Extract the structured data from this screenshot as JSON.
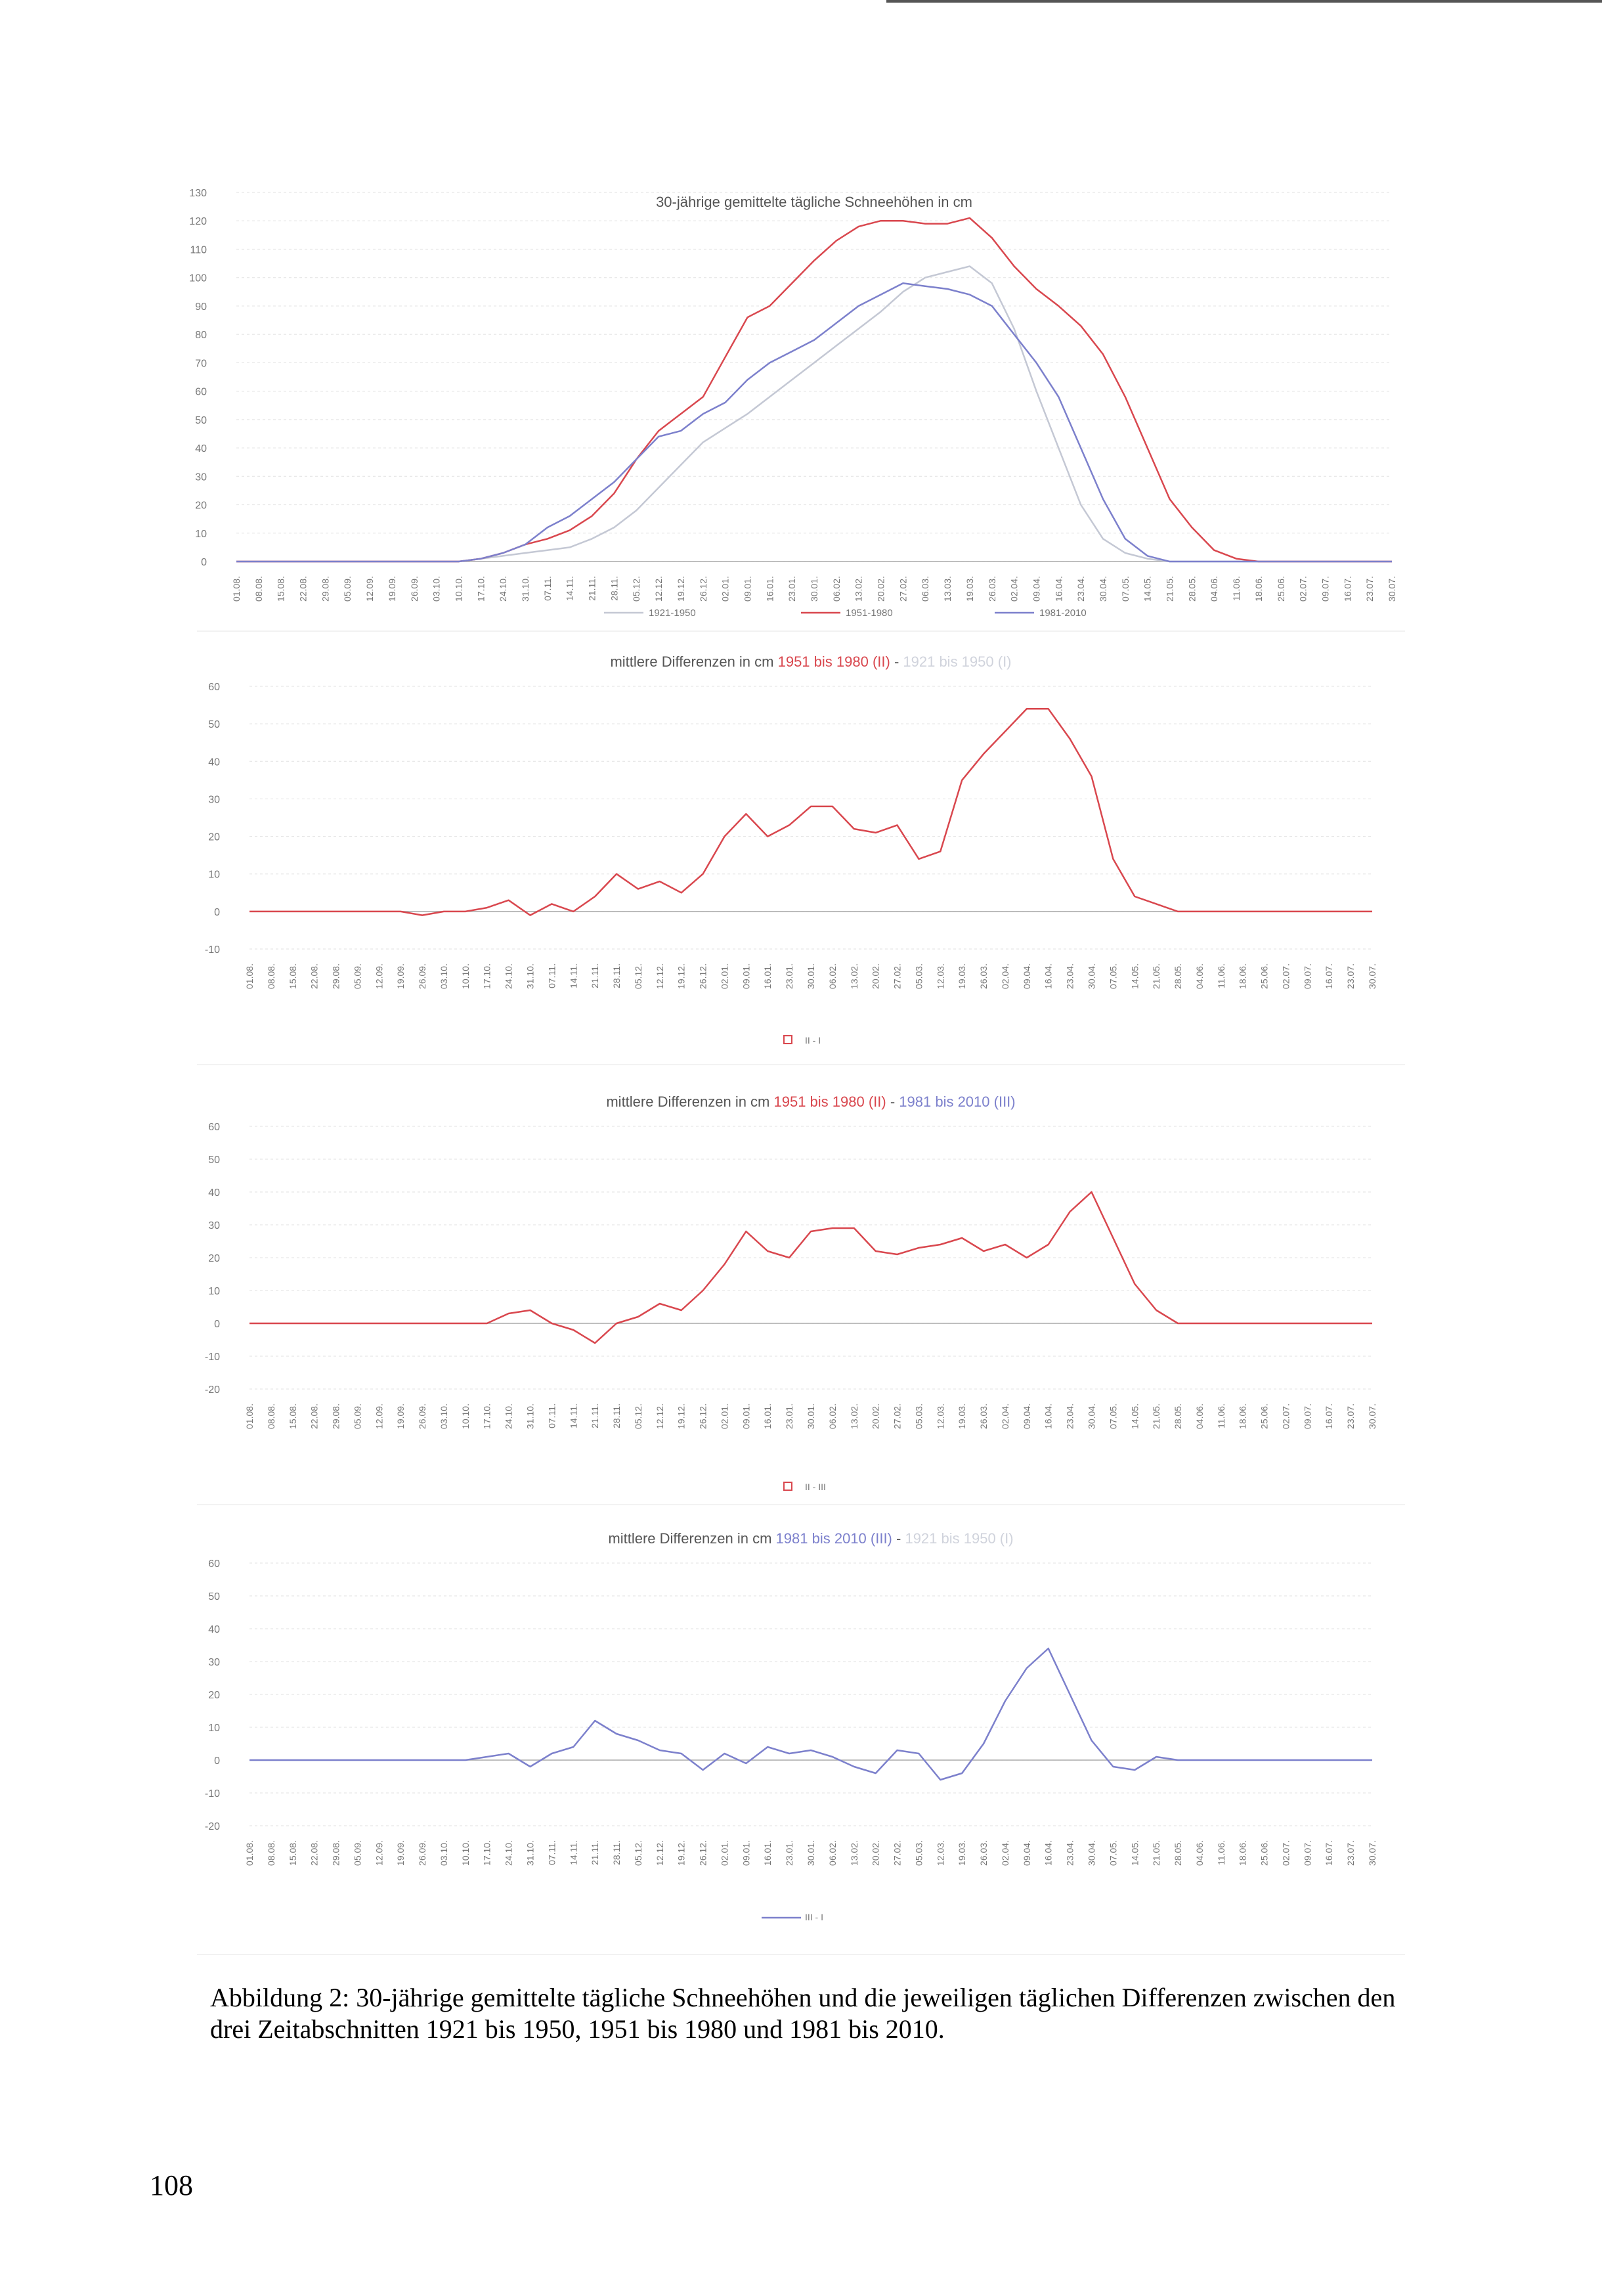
{
  "page_number": "108",
  "caption": "Abbildung 2: 30-jährige gemittelte tägliche Schneehöhen und die jeweiligen täglichen Differenzen zwischen den drei Zeitabschnitten 1921 bis 1950, 1951 bis 1980 und 1981 bis 2010.",
  "colors": {
    "c1921": "#c4c8d4",
    "c1951": "#d9474e",
    "c1981": "#7c80cc",
    "axis": "#999999",
    "grid": "#e6e6e6"
  },
  "chart_data": [
    {
      "type": "line",
      "title": "30-jährige gemittelte tägliche Schneehöhen in cm",
      "ylim": [
        0,
        130
      ],
      "yticks": [
        "0",
        "10",
        "20",
        "30",
        "40",
        "50",
        "60",
        "70",
        "80",
        "90",
        "100",
        "110",
        "120",
        "130"
      ],
      "categories": [
        "01.08.",
        "08.08.",
        "15.08.",
        "22.08.",
        "29.08.",
        "05.09.",
        "12.09.",
        "19.09.",
        "26.09.",
        "03.10.",
        "10.10.",
        "17.10.",
        "24.10.",
        "31.10.",
        "07.11.",
        "14.11.",
        "21.11.",
        "28.11.",
        "05.12.",
        "12.12.",
        "19.12.",
        "26.12.",
        "02.01.",
        "09.01.",
        "16.01.",
        "23.01.",
        "30.01.",
        "06.02.",
        "13.02.",
        "20.02.",
        "27.02.",
        "06.03.",
        "13.03.",
        "19.03.",
        "26.03.",
        "02.04.",
        "09.04.",
        "16.04.",
        "23.04.",
        "30.04.",
        "07.05.",
        "14.05.",
        "21.05.",
        "28.05.",
        "04.06.",
        "11.06.",
        "18.06.",
        "25.06.",
        "02.07.",
        "09.07.",
        "16.07.",
        "23.07.",
        "30.07."
      ],
      "legend": [
        "1921-1950",
        "1951-1980",
        "1981-2010"
      ],
      "series": [
        {
          "name": "1921-1950",
          "color": "#c4c8d4",
          "values": [
            0,
            0,
            0,
            0,
            0,
            0,
            0,
            0,
            0,
            0,
            0,
            1,
            2,
            3,
            4,
            5,
            8,
            12,
            18,
            26,
            34,
            42,
            47,
            52,
            58,
            64,
            70,
            76,
            82,
            88,
            95,
            100,
            102,
            104,
            98,
            82,
            60,
            40,
            20,
            8,
            3,
            1,
            0,
            0,
            0,
            0,
            0,
            0,
            0,
            0,
            0,
            0,
            0
          ]
        },
        {
          "name": "1951-1980",
          "color": "#d9474e",
          "values": [
            0,
            0,
            0,
            0,
            0,
            0,
            0,
            0,
            0,
            0,
            0,
            1,
            3,
            6,
            8,
            11,
            16,
            24,
            36,
            46,
            52,
            58,
            72,
            86,
            90,
            98,
            106,
            113,
            118,
            120,
            120,
            119,
            119,
            121,
            114,
            104,
            96,
            90,
            83,
            73,
            58,
            40,
            22,
            12,
            4,
            1,
            0,
            0,
            0,
            0,
            0,
            0,
            0
          ]
        },
        {
          "name": "1981-2010",
          "color": "#7c80cc",
          "values": [
            0,
            0,
            0,
            0,
            0,
            0,
            0,
            0,
            0,
            0,
            0,
            1,
            3,
            6,
            12,
            16,
            22,
            28,
            36,
            44,
            46,
            52,
            56,
            64,
            70,
            74,
            78,
            84,
            90,
            94,
            98,
            97,
            96,
            94,
            90,
            80,
            70,
            58,
            40,
            22,
            8,
            2,
            0,
            0,
            0,
            0,
            0,
            0,
            0,
            0,
            0,
            0,
            0
          ]
        }
      ]
    },
    {
      "type": "line",
      "title": "mittlere Differenzen in cm 1951 bis 1980 (II) - 1921 bis 1950 (I)",
      "title_parts": [
        "mittlere Differenzen in cm",
        "1951 bis 1980 (II)",
        "-",
        "1921 bis 1950 (I)"
      ],
      "ylim": [
        -10,
        60
      ],
      "yticks": [
        "-10",
        "0",
        "10",
        "20",
        "30",
        "40",
        "50",
        "60"
      ],
      "categories": [
        "01.08.",
        "08.08.",
        "15.08.",
        "22.08.",
        "29.08.",
        "05.09.",
        "12.09.",
        "19.09.",
        "26.09.",
        "03.10.",
        "10.10.",
        "17.10.",
        "24.10.",
        "31.10.",
        "07.11.",
        "14.11.",
        "21.11.",
        "28.11.",
        "05.12.",
        "12.12.",
        "19.12.",
        "26.12.",
        "02.01.",
        "09.01.",
        "16.01.",
        "23.01.",
        "30.01.",
        "06.02.",
        "13.02.",
        "20.02.",
        "27.02.",
        "05.03.",
        "12.03.",
        "19.03.",
        "26.03.",
        "02.04.",
        "09.04.",
        "16.04.",
        "23.04.",
        "30.04.",
        "07.05.",
        "14.05.",
        "21.05.",
        "28.05.",
        "04.06.",
        "11.06.",
        "18.06.",
        "25.06.",
        "02.07.",
        "09.07.",
        "16.07.",
        "23.07.",
        "30.07."
      ],
      "legend": [
        "II - I"
      ],
      "series": [
        {
          "name": "II - I",
          "color": "#d9474e",
          "values": [
            0,
            0,
            0,
            0,
            0,
            0,
            0,
            0,
            -1,
            0,
            0,
            1,
            3,
            -1,
            2,
            0,
            4,
            10,
            6,
            8,
            5,
            10,
            20,
            26,
            20,
            23,
            28,
            28,
            22,
            21,
            23,
            14,
            16,
            35,
            42,
            48,
            54,
            54,
            46,
            36,
            14,
            4,
            2,
            0,
            0,
            0,
            0,
            0,
            0,
            0,
            0,
            0,
            0
          ]
        }
      ]
    },
    {
      "type": "line",
      "title": "mittlere Differenzen in cm 1951 bis 1980 (II) - 1981 bis 2010 (III)",
      "title_parts": [
        "mittlere Differenzen in cm",
        "1951 bis 1980 (II)",
        "-",
        "1981 bis 2010 (III)"
      ],
      "ylim": [
        -20,
        60
      ],
      "yticks": [
        "-20",
        "-10",
        "0",
        "10",
        "20",
        "30",
        "40",
        "50",
        "60"
      ],
      "categories": [
        "01.08.",
        "08.08.",
        "15.08.",
        "22.08.",
        "29.08.",
        "05.09.",
        "12.09.",
        "19.09.",
        "26.09.",
        "03.10.",
        "10.10.",
        "17.10.",
        "24.10.",
        "31.10.",
        "07.11.",
        "14.11.",
        "21.11.",
        "28.11.",
        "05.12.",
        "12.12.",
        "19.12.",
        "26.12.",
        "02.01.",
        "09.01.",
        "16.01.",
        "23.01.",
        "30.01.",
        "06.02.",
        "13.02.",
        "20.02.",
        "27.02.",
        "05.03.",
        "12.03.",
        "19.03.",
        "26.03.",
        "02.04.",
        "09.04.",
        "16.04.",
        "23.04.",
        "30.04.",
        "07.05.",
        "14.05.",
        "21.05.",
        "28.05.",
        "04.06.",
        "11.06.",
        "18.06.",
        "25.06.",
        "02.07.",
        "09.07.",
        "16.07.",
        "23.07.",
        "30.07."
      ],
      "legend": [
        "II - III"
      ],
      "series": [
        {
          "name": "II - III",
          "color": "#d9474e",
          "values": [
            0,
            0,
            0,
            0,
            0,
            0,
            0,
            0,
            0,
            0,
            0,
            0,
            3,
            4,
            0,
            -2,
            -6,
            0,
            2,
            6,
            4,
            10,
            18,
            28,
            22,
            20,
            28,
            29,
            29,
            22,
            21,
            23,
            24,
            26,
            22,
            24,
            20,
            24,
            34,
            40,
            26,
            12,
            4,
            0,
            0,
            0,
            0,
            0,
            0,
            0,
            0,
            0,
            0
          ]
        }
      ]
    },
    {
      "type": "line",
      "title": "mittlere Differenzen in cm 1981 bis 2010 (III) - 1921 bis 1950 (I)",
      "title_parts": [
        "mittlere Differenzen in cm",
        "1981 bis 2010 (III)",
        "-",
        "1921 bis 1950 (I)"
      ],
      "ylim": [
        -20,
        60
      ],
      "yticks": [
        "-20",
        "-10",
        "0",
        "10",
        "20",
        "30",
        "40",
        "50",
        "60"
      ],
      "categories": [
        "01.08.",
        "08.08.",
        "15.08.",
        "22.08.",
        "29.08.",
        "05.09.",
        "12.09.",
        "19.09.",
        "26.09.",
        "03.10.",
        "10.10.",
        "17.10.",
        "24.10.",
        "31.10.",
        "07.11.",
        "14.11.",
        "21.11.",
        "28.11.",
        "05.12.",
        "12.12.",
        "19.12.",
        "26.12.",
        "02.01.",
        "09.01.",
        "16.01.",
        "23.01.",
        "30.01.",
        "06.02.",
        "13.02.",
        "20.02.",
        "27.02.",
        "05.03.",
        "12.03.",
        "19.03.",
        "26.03.",
        "02.04.",
        "09.04.",
        "16.04.",
        "23.04.",
        "30.04.",
        "07.05.",
        "14.05.",
        "21.05.",
        "28.05.",
        "04.06.",
        "11.06.",
        "18.06.",
        "25.06.",
        "02.07.",
        "09.07.",
        "16.07.",
        "23.07.",
        "30.07."
      ],
      "legend": [
        "III - I"
      ],
      "series": [
        {
          "name": "III - I",
          "color": "#7c80cc",
          "values": [
            0,
            0,
            0,
            0,
            0,
            0,
            0,
            0,
            0,
            0,
            0,
            1,
            2,
            -2,
            2,
            4,
            12,
            8,
            6,
            3,
            2,
            -3,
            2,
            -1,
            4,
            2,
            3,
            1,
            -2,
            -4,
            3,
            2,
            -6,
            -4,
            5,
            18,
            28,
            34,
            20,
            6,
            -2,
            -3,
            1,
            0,
            0,
            0,
            0,
            0,
            0,
            0,
            0,
            0,
            0
          ]
        }
      ]
    }
  ]
}
